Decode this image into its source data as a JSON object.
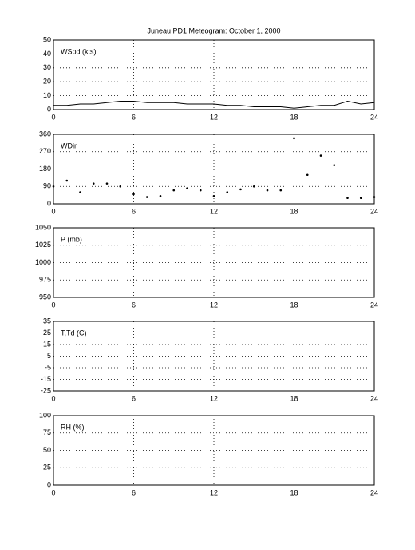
{
  "chart_data": [
    {
      "type": "line",
      "title": "Juneau PD1 Meteogram:   October  1, 2000",
      "ylabel": "WSpd (kts)",
      "x": [
        0,
        1,
        2,
        3,
        4,
        5,
        6,
        7,
        8,
        9,
        10,
        11,
        12,
        13,
        14,
        15,
        16,
        17,
        18,
        19,
        20,
        21,
        22,
        23,
        24
      ],
      "series": [
        {
          "color": "#000000",
          "values": [
            3,
            3,
            4,
            4,
            5,
            6,
            6,
            5,
            5,
            5,
            4,
            4,
            4,
            3,
            3,
            2,
            2,
            2,
            1,
            2,
            3,
            3,
            6,
            4,
            5
          ]
        }
      ],
      "xlim": [
        0,
        24
      ],
      "xticks": [
        0,
        6,
        12,
        18,
        24
      ],
      "ylim": [
        0,
        50
      ],
      "yticks": [
        0,
        10,
        20,
        30,
        40,
        50
      ],
      "grid": true
    },
    {
      "type": "scatter",
      "ylabel": "WDir",
      "x": [
        0,
        1,
        2,
        3,
        4,
        5,
        6,
        7,
        8,
        9,
        10,
        11,
        12,
        13,
        14,
        15,
        16,
        17,
        18,
        19,
        20,
        21,
        22,
        23,
        24
      ],
      "series": [
        {
          "color": "#000000",
          "values": [
            90,
            120,
            60,
            105,
            105,
            90,
            50,
            35,
            40,
            70,
            80,
            70,
            40,
            60,
            75,
            90,
            70,
            70,
            340,
            150,
            250,
            200,
            30,
            30,
            35
          ]
        }
      ],
      "xlim": [
        0,
        24
      ],
      "xticks": [
        0,
        6,
        12,
        18,
        24
      ],
      "ylim": [
        0,
        360
      ],
      "yticks": [
        0,
        90,
        180,
        270,
        360
      ],
      "grid": true
    },
    {
      "type": "line",
      "ylabel": "P (mb)",
      "xlim": [
        0,
        24
      ],
      "xticks": [
        0,
        6,
        12,
        18,
        24
      ],
      "ylim": [
        950,
        1050
      ],
      "yticks": [
        950,
        975,
        1000,
        1025,
        1050
      ],
      "grid": true
    },
    {
      "type": "line",
      "ylabel": "T,Td (C)",
      "xlim": [
        0,
        24
      ],
      "xticks": [
        0,
        6,
        12,
        18,
        24
      ],
      "ylim": [
        -25,
        35
      ],
      "yticks": [
        -25,
        -15,
        -5,
        5,
        15,
        25,
        35
      ],
      "grid": true
    },
    {
      "type": "line",
      "ylabel": "RH (%)",
      "xlim": [
        0,
        24
      ],
      "xticks": [
        0,
        6,
        12,
        18,
        24
      ],
      "ylim": [
        0,
        100
      ],
      "yticks": [
        0,
        25,
        50,
        75,
        100
      ],
      "grid": true
    }
  ]
}
